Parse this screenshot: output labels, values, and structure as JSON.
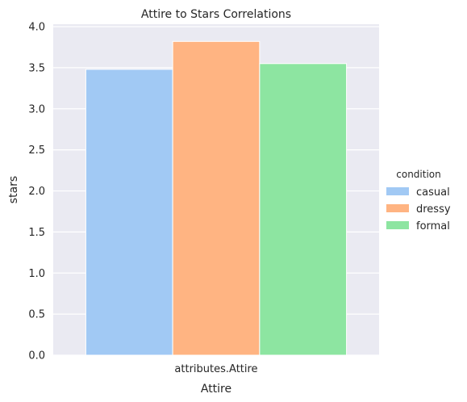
{
  "chart_data": {
    "type": "bar",
    "title": "Attire to Stars Correlations",
    "xlabel": "Attire",
    "ylabel": "stars",
    "categories": [
      "attributes.Attire"
    ],
    "series": [
      {
        "name": "casual",
        "values": [
          3.48
        ],
        "color": "#a1c9f4"
      },
      {
        "name": "dressy",
        "values": [
          3.82
        ],
        "color": "#ffb482"
      },
      {
        "name": "formal",
        "values": [
          3.55
        ],
        "color": "#8de5a1"
      }
    ],
    "ylim": [
      0,
      4.0
    ],
    "yticks": [
      "0.0",
      "0.5",
      "1.0",
      "1.5",
      "2.0",
      "2.5",
      "3.0",
      "3.5",
      "4.0"
    ],
    "grid": true,
    "legend": {
      "title": "condition",
      "placement": "right"
    },
    "background_color": "#eaeaf2"
  }
}
